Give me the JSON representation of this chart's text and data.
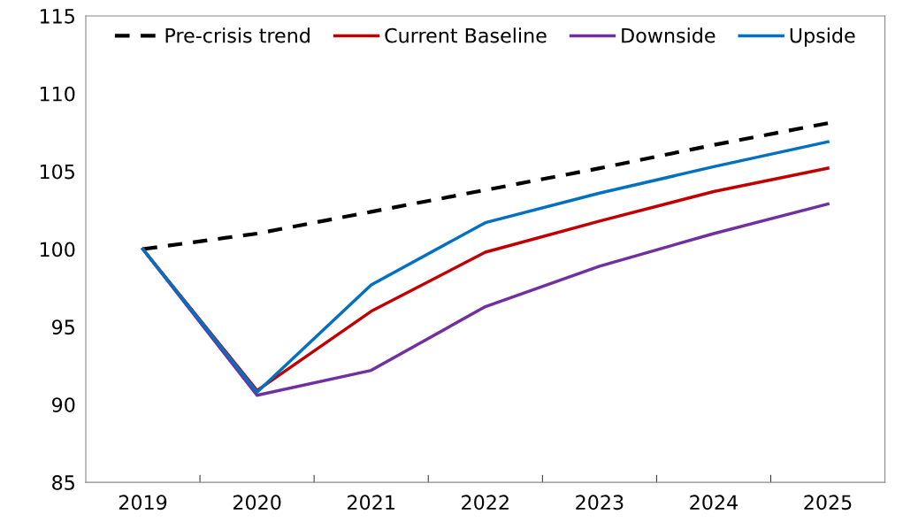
{
  "chart_data": {
    "type": "line",
    "categories": [
      "2019",
      "2020",
      "2021",
      "2022",
      "2023",
      "2024",
      "2025"
    ],
    "series": [
      {
        "name": "Pre-crisis trend",
        "color": "#000000",
        "line_style": "dashed",
        "values": [
          100,
          101.0,
          102.4,
          103.8,
          105.2,
          106.7,
          108.1
        ]
      },
      {
        "name": "Current Baseline",
        "color": "#c00000",
        "line_style": "solid",
        "values": [
          100,
          90.9,
          96.0,
          99.8,
          101.8,
          103.7,
          105.2
        ]
      },
      {
        "name": "Downside",
        "color": "#7030a0",
        "line_style": "solid",
        "values": [
          100,
          90.6,
          92.2,
          96.3,
          98.9,
          101.0,
          102.9
        ]
      },
      {
        "name": "Upside",
        "color": "#0070c0",
        "line_style": "solid",
        "values": [
          100,
          90.8,
          97.7,
          101.7,
          103.6,
          105.3,
          106.9
        ]
      }
    ],
    "ylim": [
      85,
      115
    ],
    "yticks": [
      85,
      90,
      95,
      100,
      105,
      110,
      115
    ],
    "grid": false,
    "legend": "top",
    "marker": "none"
  }
}
